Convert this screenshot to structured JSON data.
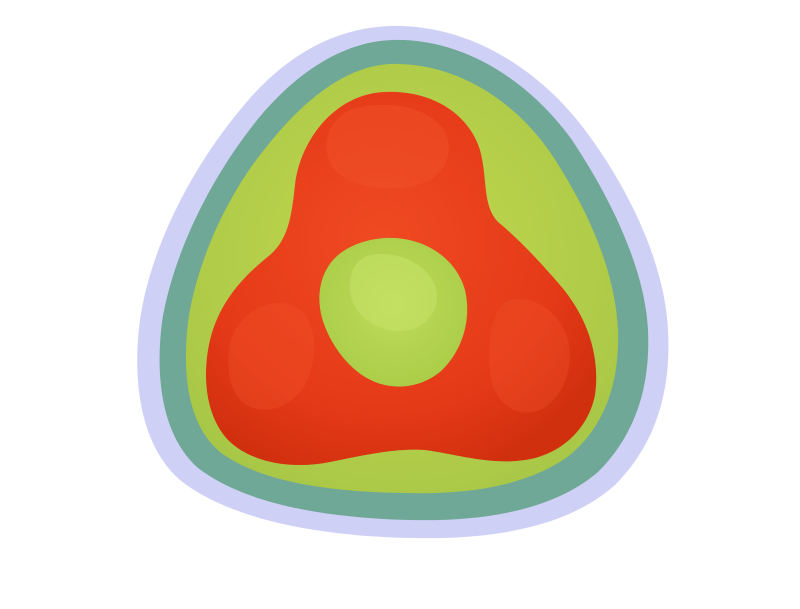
{
  "scene": {
    "background": "#ffffff",
    "layers": [
      {
        "name": "outer-shell",
        "color": "#cfd0f6"
      },
      {
        "name": "teal-shell",
        "color": "#6fa896"
      },
      {
        "name": "lime-shell",
        "color": "#b9d24c"
      },
      {
        "name": "red-lobes",
        "color": "#e63a1a"
      },
      {
        "name": "center-core",
        "color": "#b5d653"
      }
    ]
  }
}
